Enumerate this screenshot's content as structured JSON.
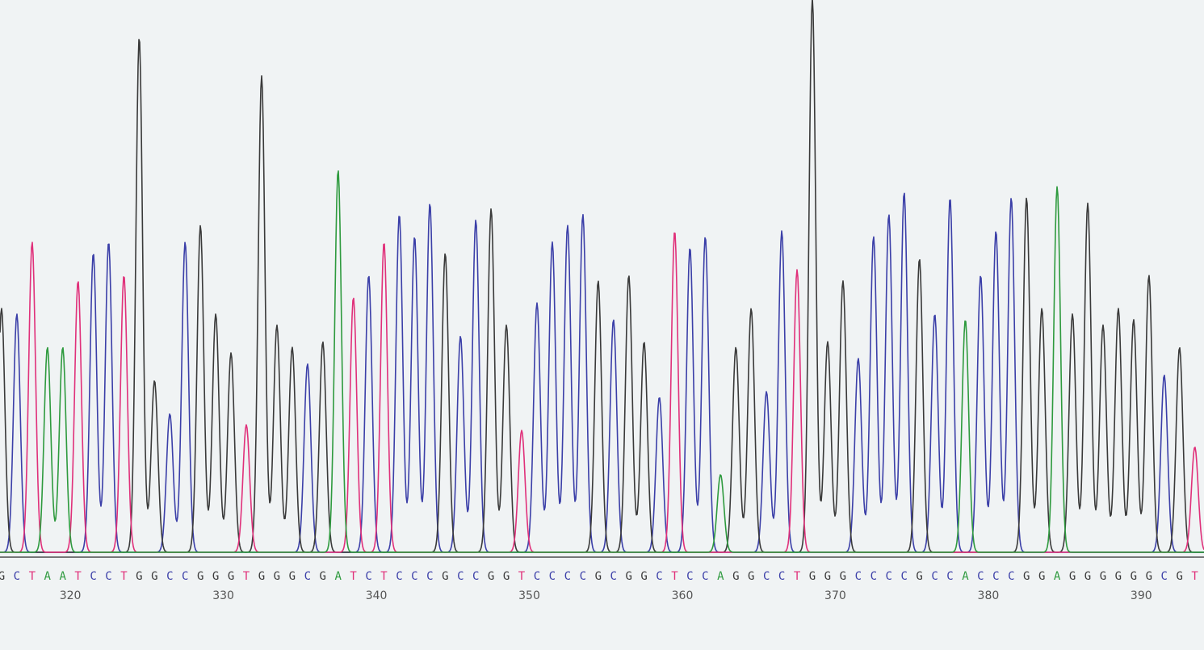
{
  "chart_data": {
    "type": "line",
    "title": "",
    "xlabel": "",
    "ylabel": "",
    "grid": false,
    "legend": "none",
    "colors": {
      "A": "#2e9a3e",
      "C": "#3b3fa8",
      "G": "#3a3a3a",
      "T": "#e0307a"
    },
    "x_range": [
      315.4,
      394.1
    ],
    "y_range": [
      0,
      1000
    ],
    "position_ticks": [
      320,
      330,
      340,
      350,
      360,
      370,
      380,
      390
    ],
    "base_calls": [
      {
        "pos": 315.5,
        "base": "G",
        "height": 440
      },
      {
        "pos": 316.5,
        "base": "C",
        "height": 430
      },
      {
        "pos": 317.5,
        "base": "T",
        "height": 560
      },
      {
        "pos": 318.5,
        "base": "A",
        "height": 370
      },
      {
        "pos": 319.5,
        "base": "A",
        "height": 370
      },
      {
        "pos": 320.5,
        "base": "T",
        "height": 490
      },
      {
        "pos": 321.5,
        "base": "C",
        "height": 540
      },
      {
        "pos": 322.5,
        "base": "C",
        "height": 560
      },
      {
        "pos": 323.5,
        "base": "T",
        "height": 500
      },
      {
        "pos": 324.5,
        "base": "G",
        "height": 930
      },
      {
        "pos": 325.5,
        "base": "G",
        "height": 310
      },
      {
        "pos": 326.5,
        "base": "C",
        "height": 250
      },
      {
        "pos": 327.5,
        "base": "C",
        "height": 560
      },
      {
        "pos": 328.5,
        "base": "G",
        "height": 590
      },
      {
        "pos": 329.5,
        "base": "G",
        "height": 430
      },
      {
        "pos": 330.5,
        "base": "G",
        "height": 360
      },
      {
        "pos": 331.5,
        "base": "T",
        "height": 230
      },
      {
        "pos": 332.5,
        "base": "G",
        "height": 860
      },
      {
        "pos": 333.5,
        "base": "G",
        "height": 410
      },
      {
        "pos": 334.5,
        "base": "G",
        "height": 370
      },
      {
        "pos": 335.5,
        "base": "C",
        "height": 340
      },
      {
        "pos": 336.5,
        "base": "G",
        "height": 380
      },
      {
        "pos": 337.5,
        "base": "A",
        "height": 690
      },
      {
        "pos": 338.5,
        "base": "T",
        "height": 460
      },
      {
        "pos": 339.5,
        "base": "C",
        "height": 500
      },
      {
        "pos": 340.5,
        "base": "T",
        "height": 560
      },
      {
        "pos": 341.5,
        "base": "C",
        "height": 610
      },
      {
        "pos": 342.5,
        "base": "C",
        "height": 570
      },
      {
        "pos": 343.5,
        "base": "C",
        "height": 630
      },
      {
        "pos": 344.5,
        "base": "G",
        "height": 540
      },
      {
        "pos": 345.5,
        "base": "C",
        "height": 390
      },
      {
        "pos": 346.5,
        "base": "C",
        "height": 600
      },
      {
        "pos": 347.5,
        "base": "G",
        "height": 620
      },
      {
        "pos": 348.5,
        "base": "G",
        "height": 410
      },
      {
        "pos": 349.5,
        "base": "T",
        "height": 220
      },
      {
        "pos": 350.5,
        "base": "C",
        "height": 450
      },
      {
        "pos": 351.5,
        "base": "C",
        "height": 560
      },
      {
        "pos": 352.5,
        "base": "C",
        "height": 590
      },
      {
        "pos": 353.5,
        "base": "C",
        "height": 610
      },
      {
        "pos": 354.5,
        "base": "G",
        "height": 490
      },
      {
        "pos": 355.5,
        "base": "C",
        "height": 420
      },
      {
        "pos": 356.5,
        "base": "G",
        "height": 500
      },
      {
        "pos": 357.5,
        "base": "G",
        "height": 380
      },
      {
        "pos": 358.5,
        "base": "C",
        "height": 280
      },
      {
        "pos": 359.5,
        "base": "T",
        "height": 580
      },
      {
        "pos": 360.5,
        "base": "C",
        "height": 550
      },
      {
        "pos": 361.5,
        "base": "C",
        "height": 570
      },
      {
        "pos": 362.5,
        "base": "A",
        "height": 140
      },
      {
        "pos": 363.5,
        "base": "G",
        "height": 370
      },
      {
        "pos": 364.5,
        "base": "G",
        "height": 440
      },
      {
        "pos": 365.5,
        "base": "C",
        "height": 290
      },
      {
        "pos": 366.5,
        "base": "C",
        "height": 580
      },
      {
        "pos": 367.5,
        "base": "T",
        "height": 510
      },
      {
        "pos": 368.5,
        "base": "G",
        "height": 1000
      },
      {
        "pos": 369.5,
        "base": "G",
        "height": 380
      },
      {
        "pos": 370.5,
        "base": "G",
        "height": 490
      },
      {
        "pos": 371.5,
        "base": "C",
        "height": 350
      },
      {
        "pos": 372.5,
        "base": "C",
        "height": 570
      },
      {
        "pos": 373.5,
        "base": "C",
        "height": 610
      },
      {
        "pos": 374.5,
        "base": "C",
        "height": 650
      },
      {
        "pos": 375.5,
        "base": "G",
        "height": 530
      },
      {
        "pos": 376.5,
        "base": "C",
        "height": 430
      },
      {
        "pos": 377.5,
        "base": "C",
        "height": 640
      },
      {
        "pos": 378.5,
        "base": "A",
        "height": 420
      },
      {
        "pos": 379.5,
        "base": "C",
        "height": 500
      },
      {
        "pos": 380.5,
        "base": "C",
        "height": 580
      },
      {
        "pos": 381.5,
        "base": "C",
        "height": 640
      },
      {
        "pos": 382.5,
        "base": "G",
        "height": 640
      },
      {
        "pos": 383.5,
        "base": "G",
        "height": 440
      },
      {
        "pos": 384.5,
        "base": "A",
        "height": 660
      },
      {
        "pos": 385.5,
        "base": "G",
        "height": 430
      },
      {
        "pos": 386.5,
        "base": "G",
        "height": 630
      },
      {
        "pos": 387.5,
        "base": "G",
        "height": 410
      },
      {
        "pos": 388.5,
        "base": "G",
        "height": 440
      },
      {
        "pos": 389.5,
        "base": "G",
        "height": 420
      },
      {
        "pos": 390.5,
        "base": "G",
        "height": 500
      },
      {
        "pos": 391.5,
        "base": "C",
        "height": 320
      },
      {
        "pos": 392.5,
        "base": "G",
        "height": 370
      },
      {
        "pos": 393.5,
        "base": "T",
        "height": 190
      }
    ]
  }
}
